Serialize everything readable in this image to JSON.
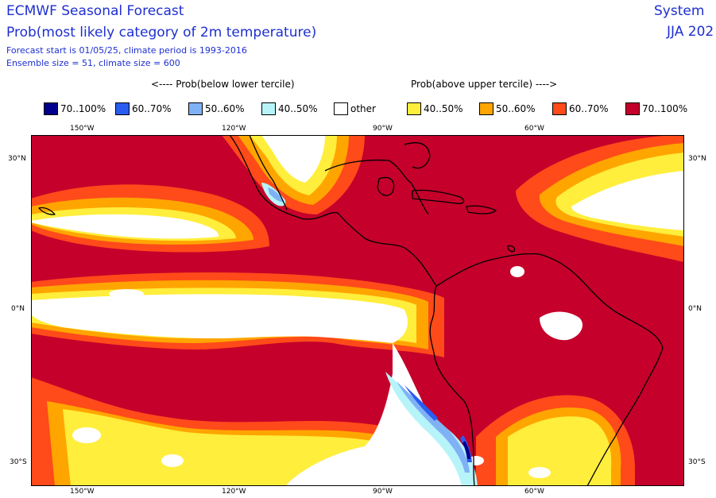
{
  "header": {
    "title": "ECMWF Seasonal Forecast",
    "subtitle": "Prob(most likely category of 2m temperature)",
    "info_line1": "Forecast start is 01/05/25, climate period is 1993-2016",
    "info_line2": "Ensemble size = 51, climate size = 600",
    "system": "System",
    "season": "JJA 202"
  },
  "captions": {
    "below": "<---- Prob(below lower tercile)",
    "above": "Prob(above upper tercile) ---->"
  },
  "legend": [
    {
      "label": "70..100%",
      "color": "#00008c"
    },
    {
      "label": "60..70%",
      "color": "#2b5cf0"
    },
    {
      "label": "50..60%",
      "color": "#7fb2f5"
    },
    {
      "label": "40..50%",
      "color": "#b7f4fa"
    },
    {
      "label": "other",
      "color": "#ffffff"
    },
    {
      "label": "40..50%",
      "color": "#ffee3c"
    },
    {
      "label": "50..60%",
      "color": "#ffa500"
    },
    {
      "label": "60..70%",
      "color": "#ff4a1a"
    },
    {
      "label": "70..100%",
      "color": "#c4002b"
    }
  ],
  "axes": {
    "lon_labels": [
      "150°W",
      "120°W",
      "90°W",
      "60°W"
    ],
    "lat_labels": [
      "30°N",
      "0°N",
      "30°S"
    ]
  },
  "map": {
    "extent": {
      "lon": [
        -165,
        -30
      ],
      "lat": [
        -37,
        40
      ]
    },
    "background_color": "#c4002b",
    "regions": {
      "white": "other",
      "yellow": "40..50%",
      "orange": "50..60%",
      "red_orange": "60..70%",
      "cyan": "40..50%",
      "light_blue": "50..60%",
      "blue": "60..70%",
      "navy": "70..100%"
    },
    "coastline_color": "#000000"
  }
}
